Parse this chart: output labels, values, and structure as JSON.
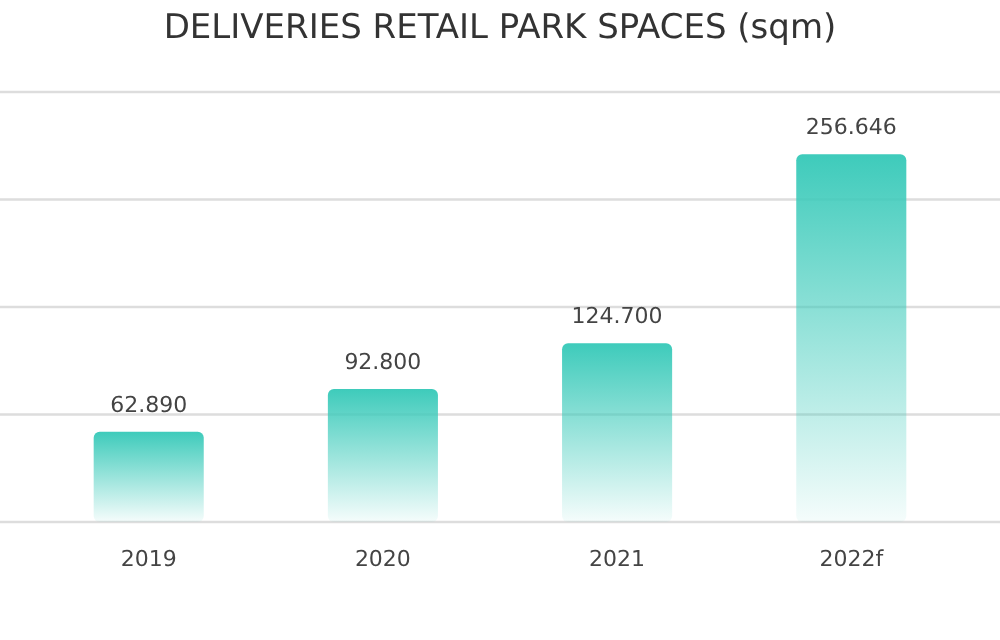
{
  "chart_data": {
    "type": "bar",
    "title": "DELIVERIES RETAIL PARK SPACES (sqm)",
    "categories": [
      "2019",
      "2020",
      "2021",
      "2022f"
    ],
    "values": [
      62890,
      92800,
      124700,
      256646
    ],
    "value_labels": [
      "62.890",
      "92.800",
      "124.700",
      "256.646"
    ],
    "color": "#3ecbbb",
    "ylim": [
      0,
      300000
    ],
    "yticks": [
      {
        "value": 0,
        "label": null
      },
      {
        "value": 75000,
        "label": null
      },
      {
        "value": 150000,
        "label": null
      },
      {
        "value": 225000,
        "label": null
      },
      {
        "value": 300000,
        "label": null
      }
    ],
    "grid": "y",
    "tick_labels": "x"
  }
}
